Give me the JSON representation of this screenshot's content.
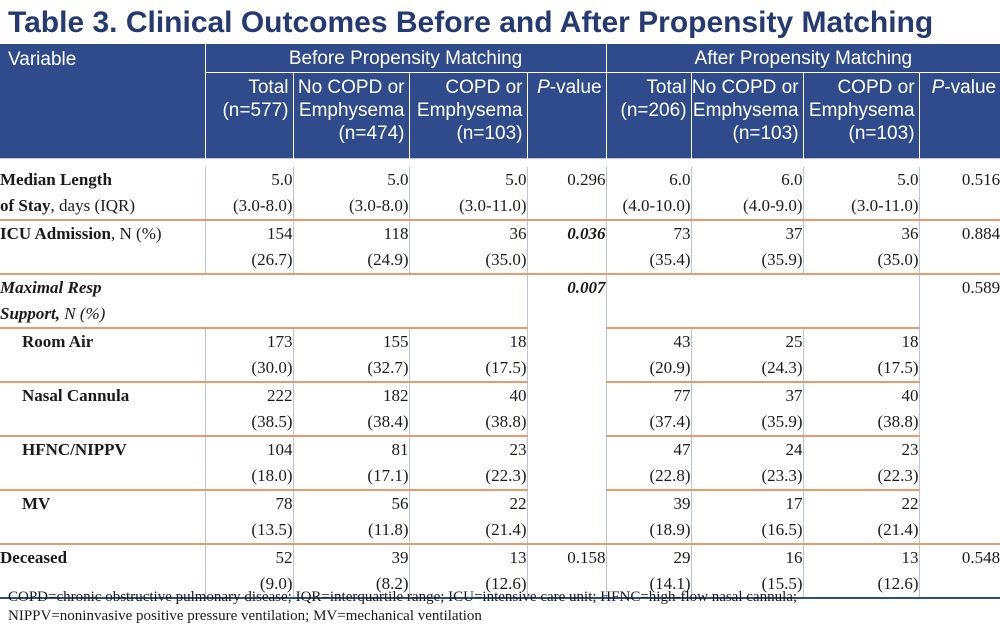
{
  "title": "Table 3. Clinical Outcomes Before and After Propensity Matching",
  "groups": {
    "before": "Before Propensity Matching",
    "after": "After Propensity Matching"
  },
  "header": {
    "variable": "Variable",
    "before_cols": [
      [
        "Total",
        "(n=577)"
      ],
      [
        "No COPD or",
        "Emphysema",
        "(n=474)"
      ],
      [
        "COPD or",
        "Emphysema",
        "(n=103)"
      ],
      [
        "P",
        "-value"
      ]
    ],
    "after_cols": [
      [
        "Total",
        "(n=206)"
      ],
      [
        "No COPD or",
        "Emphysema",
        "(n=103)"
      ],
      [
        "COPD or",
        "Emphysema",
        "(n=103)"
      ],
      [
        "P",
        "-value"
      ]
    ]
  },
  "rows": {
    "los": {
      "label_bold": "Median Length",
      "label_bold2": "of Stay",
      "label_rest": ", days (IQR)",
      "before": [
        [
          "5.0",
          "(3.0-8.0)"
        ],
        [
          "5.0",
          "(3.0-8.0)"
        ],
        [
          "5.0",
          "(3.0-11.0)"
        ]
      ],
      "before_p": "0.296",
      "after": [
        [
          "6.0",
          "(4.0-10.0)"
        ],
        [
          "6.0",
          "(4.0-9.0)"
        ],
        [
          "5.0",
          "(3.0-11.0)"
        ]
      ],
      "after_p": "0.516"
    },
    "icu": {
      "label_bold": "ICU Admission",
      "label_rest": ", N (%)",
      "before": [
        [
          "154",
          "(26.7)"
        ],
        [
          "118",
          "(24.9)"
        ],
        [
          "36",
          "(35.0)"
        ]
      ],
      "before_p": "0.036",
      "after": [
        [
          "73",
          "(35.4)"
        ],
        [
          "37",
          "(35.9)"
        ],
        [
          "36",
          "(35.0)"
        ]
      ],
      "after_p": "0.884"
    },
    "resp": {
      "label_bi": "Maximal Resp",
      "label_bi2": "Support,",
      "label_i": " N (%)",
      "before_p": "0.007",
      "after_p": "0.589"
    },
    "room_air": {
      "label": "Room Air",
      "before": [
        [
          "173",
          "(30.0)"
        ],
        [
          "155",
          "(32.7)"
        ],
        [
          "18",
          "(17.5)"
        ]
      ],
      "after": [
        [
          "43",
          "(20.9)"
        ],
        [
          "25",
          "(24.3)"
        ],
        [
          "18",
          "(17.5)"
        ]
      ]
    },
    "nasal": {
      "label": "Nasal Cannula",
      "before": [
        [
          "222",
          "(38.5)"
        ],
        [
          "182",
          "(38.4)"
        ],
        [
          "40",
          "(38.8)"
        ]
      ],
      "after": [
        [
          "77",
          "(37.4)"
        ],
        [
          "37",
          "(35.9)"
        ],
        [
          "40",
          "(38.8)"
        ]
      ]
    },
    "hfnc": {
      "label": "HFNC/NIPPV",
      "before": [
        [
          "104",
          "(18.0)"
        ],
        [
          "81",
          "(17.1)"
        ],
        [
          "23",
          "(22.3)"
        ]
      ],
      "after": [
        [
          "47",
          "(22.8)"
        ],
        [
          "24",
          "(23.3)"
        ],
        [
          "23",
          "(22.3)"
        ]
      ]
    },
    "mv": {
      "label": "MV",
      "before": [
        [
          "78",
          "(13.5)"
        ],
        [
          "56",
          "(11.8)"
        ],
        [
          "22",
          "(21.4)"
        ]
      ],
      "after": [
        [
          "39",
          "(18.9)"
        ],
        [
          "17",
          "(16.5)"
        ],
        [
          "22",
          "(21.4)"
        ]
      ]
    },
    "deceased": {
      "label": "Deceased",
      "before": [
        [
          "52",
          "(9.0)"
        ],
        [
          "39",
          "(8.2)"
        ],
        [
          "13",
          "(12.6)"
        ]
      ],
      "before_p": "0.158",
      "after": [
        [
          "29",
          "(14.1)"
        ],
        [
          "16",
          "(15.5)"
        ],
        [
          "13",
          "(12.6)"
        ]
      ],
      "after_p": "0.548"
    }
  },
  "footnote": [
    "COPD=chronic obstructive pulmonary disease; IQR=interquartile range; ICU=intensive care unit; HFNC=high-flow nasal cannula;",
    "NIPPV=noninvasive positive pressure ventilation; MV=mechanical ventilation"
  ]
}
